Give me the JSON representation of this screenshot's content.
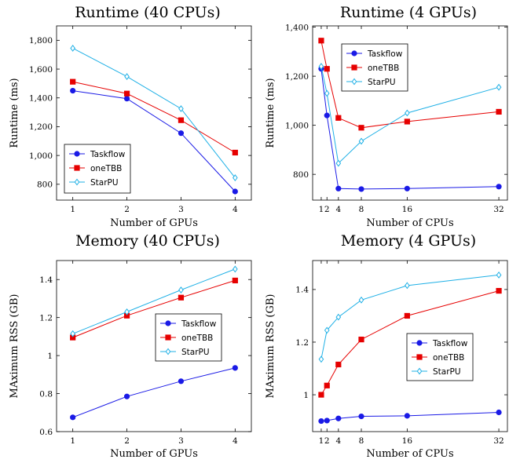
{
  "colors": {
    "Taskflow": "#1a1ae6",
    "oneTBB": "#e60000",
    "StarPU": "#1fb0e6"
  },
  "chart_data": [
    {
      "type": "line",
      "title": "Runtime (40 CPUs)",
      "xlabel": "Number of GPUs",
      "ylabel": "Runtime (ms)",
      "xlim": [
        0.7,
        4.3
      ],
      "ylim": [
        690,
        1900
      ],
      "xticks": [
        1,
        2,
        3,
        4
      ],
      "xtick_labels": [
        "1",
        "2",
        "3",
        "4"
      ],
      "yticks": [
        800,
        1000,
        1200,
        1400,
        1600,
        1800
      ],
      "ytick_labels": [
        "800",
        "1,000",
        "1,200",
        "1,400",
        "1,600",
        "1,800"
      ],
      "grid": false,
      "legend_position": "bottom-left",
      "series": [
        {
          "name": "Taskflow",
          "x": [
            1,
            2,
            3,
            4
          ],
          "values": [
            1450,
            1395,
            1155,
            750
          ]
        },
        {
          "name": "oneTBB",
          "x": [
            1,
            2,
            3,
            4
          ],
          "values": [
            1512,
            1430,
            1245,
            1020
          ]
        },
        {
          "name": "StarPU",
          "x": [
            1,
            2,
            3,
            4
          ],
          "values": [
            1745,
            1548,
            1325,
            845
          ]
        }
      ]
    },
    {
      "type": "line",
      "title": "Runtime (4 GPUs)",
      "xlabel": "Number of CPUs",
      "ylabel": "Runtime (ms)",
      "xlim": [
        -0.5,
        33.5
      ],
      "ylim": [
        695,
        1405
      ],
      "xticks": [
        1,
        2,
        4,
        8,
        16,
        32
      ],
      "xtick_labels": [
        "1",
        "2",
        "4",
        "8",
        "16",
        "32"
      ],
      "yticks": [
        800,
        1000,
        1200,
        1400
      ],
      "ytick_labels": [
        "800",
        "1,000",
        "1,200",
        "1,400"
      ],
      "grid": false,
      "legend_position": "top-left",
      "series": [
        {
          "name": "Taskflow",
          "x": [
            1,
            2,
            4,
            8,
            16,
            32
          ],
          "values": [
            1230,
            1040,
            742,
            740,
            742,
            750
          ]
        },
        {
          "name": "oneTBB",
          "x": [
            1,
            2,
            4,
            8,
            16,
            32
          ],
          "values": [
            1345,
            1230,
            1030,
            990,
            1015,
            1055
          ]
        },
        {
          "name": "StarPU",
          "x": [
            1,
            2,
            4,
            8,
            16,
            32
          ],
          "values": [
            1240,
            1130,
            845,
            935,
            1050,
            1155
          ]
        }
      ]
    },
    {
      "type": "line",
      "title": "Memory (40 CPUs)",
      "xlabel": "Number of GPUs",
      "ylabel": "MAximum RSS (GB)",
      "xlim": [
        0.7,
        4.3
      ],
      "ylim": [
        0.6,
        1.5
      ],
      "xticks": [
        1,
        2,
        3,
        4
      ],
      "xtick_labels": [
        "1",
        "2",
        "3",
        "4"
      ],
      "yticks": [
        0.6,
        0.8,
        1,
        1.2,
        1.4
      ],
      "ytick_labels": [
        "0.6",
        "0.8",
        "1",
        "1.2",
        "1.4"
      ],
      "grid": false,
      "legend_position": "middle-right",
      "series": [
        {
          "name": "Taskflow",
          "x": [
            1,
            2,
            3,
            4
          ],
          "values": [
            0.675,
            0.785,
            0.865,
            0.935
          ]
        },
        {
          "name": "oneTBB",
          "x": [
            1,
            2,
            3,
            4
          ],
          "values": [
            1.095,
            1.21,
            1.305,
            1.395
          ]
        },
        {
          "name": "StarPU",
          "x": [
            1,
            2,
            3,
            4
          ],
          "values": [
            1.115,
            1.23,
            1.345,
            1.455
          ]
        }
      ]
    },
    {
      "type": "line",
      "title": "Memory (4 GPUs)",
      "xlabel": "Number of CPUs",
      "ylabel": "MAximum RSS (GB)",
      "xlim": [
        -0.5,
        33.5
      ],
      "ylim": [
        0.86,
        1.51
      ],
      "xticks": [
        1,
        2,
        4,
        8,
        16,
        32
      ],
      "xtick_labels": [
        "1",
        "2",
        "4",
        "8",
        "16",
        "32"
      ],
      "yticks": [
        1,
        1.2,
        1.4
      ],
      "ytick_labels": [
        "1",
        "1.2",
        "1.4"
      ],
      "grid": false,
      "legend_position": "middle-right",
      "series": [
        {
          "name": "Taskflow",
          "x": [
            1,
            2,
            4,
            8,
            16,
            32
          ],
          "values": [
            0.9,
            0.902,
            0.91,
            0.918,
            0.92,
            0.933
          ]
        },
        {
          "name": "oneTBB",
          "x": [
            1,
            2,
            4,
            8,
            16,
            32
          ],
          "values": [
            1.0,
            1.035,
            1.115,
            1.21,
            1.3,
            1.395
          ]
        },
        {
          "name": "StarPU",
          "x": [
            1,
            2,
            4,
            8,
            16,
            32
          ],
          "values": [
            1.135,
            1.245,
            1.295,
            1.36,
            1.415,
            1.455
          ]
        }
      ]
    }
  ]
}
